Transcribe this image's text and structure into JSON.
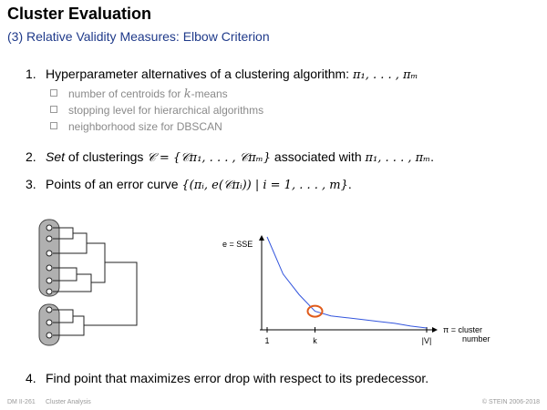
{
  "slide": {
    "title": "Cluster Evaluation",
    "subtitle": "(3) Relative Validity Measures: Elbow Criterion"
  },
  "items": [
    {
      "num": "1.",
      "text": "Hyperparameter alternatives of a clustering algorithm:",
      "math": "π₁, . . . , πₘ"
    },
    {
      "num": "2.",
      "text_em": "Set",
      "text": " of clusterings",
      "math": "𝒞 = {𝒞π₁, . . . , 𝒞πₘ}",
      "text2": " associated with ",
      "math2": "π₁, . . . , πₘ",
      "end": "."
    },
    {
      "num": "3.",
      "text": "Points of an error curve",
      "math": "{(πᵢ, e(𝒞πᵢ)) | i = 1, . . . , m}",
      "end": "."
    },
    {
      "num": "4.",
      "text": "Find point that maximizes error drop with respect to its predecessor."
    }
  ],
  "subitems": [
    {
      "prefix": "number of centroids for ",
      "math": "k",
      "suffix": "-means"
    },
    {
      "prefix": "stopping level for hierarchical algorithms",
      "math": "",
      "suffix": ""
    },
    {
      "prefix": "neighborhood size for DBSCAN",
      "math": "",
      "suffix": ""
    }
  ],
  "chart_data": {
    "type": "line",
    "ylabel": "e = SSE",
    "xlabel": "π = cluster number",
    "xlabel_line1": "π = cluster",
    "xlabel_line2": "number",
    "tick_labels": [
      "1",
      "k",
      "|V|"
    ],
    "series": [
      {
        "values": [
          1.0,
          0.6,
          0.38,
          0.2,
          0.15,
          0.13,
          0.11,
          0.09,
          0.07,
          0.04,
          0.02
        ]
      }
    ],
    "highlight_index": 3,
    "colors": {
      "line": "#3355dd",
      "highlight": "#e05a1a"
    }
  },
  "footer": {
    "left": "DM II-261",
    "center": "Cluster Analysis",
    "right": "© STEIN 2006-2018"
  }
}
